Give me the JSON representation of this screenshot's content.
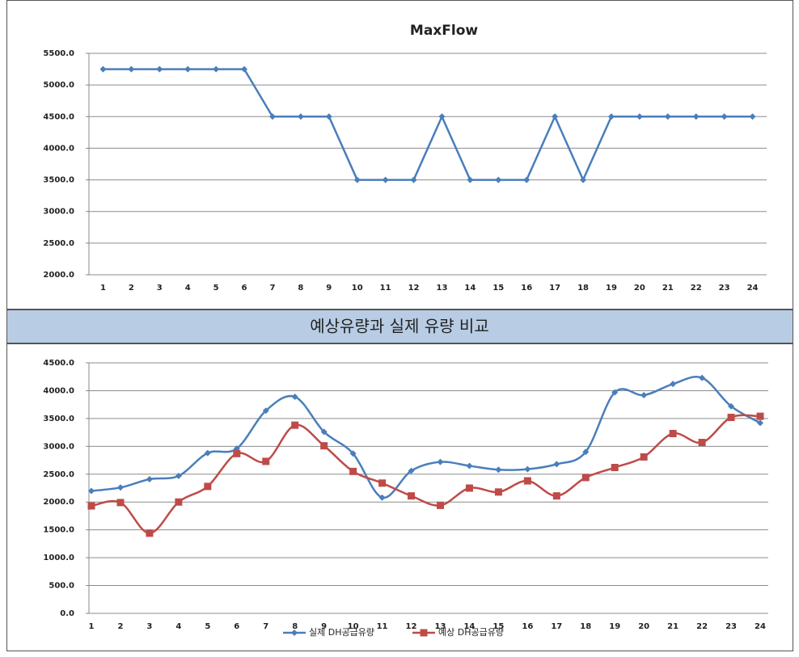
{
  "banner": "예상유량과 실제 유량 비교",
  "chart_data": [
    {
      "type": "line",
      "title": "MaxFlow",
      "categories": [
        "1",
        "2",
        "3",
        "4",
        "5",
        "6",
        "7",
        "8",
        "9",
        "10",
        "11",
        "12",
        "13",
        "14",
        "15",
        "16",
        "17",
        "18",
        "19",
        "20",
        "21",
        "22",
        "23",
        "24"
      ],
      "series": [
        {
          "color": "#4a7ebb",
          "marker": "diamond",
          "values": [
            5250,
            5250,
            5250,
            5250,
            5250,
            5250,
            4500,
            4500,
            4500,
            3500,
            3500,
            3500,
            4500,
            3500,
            3500,
            3500,
            4500,
            3500,
            4500,
            4500,
            4500,
            4500,
            4500,
            4500
          ]
        }
      ],
      "ylim": [
        2000,
        5500
      ],
      "yticks": [
        {
          "value": 2000,
          "label": "2000.0"
        },
        {
          "value": 2500,
          "label": "2500.0"
        },
        {
          "value": 3000,
          "label": "3000.0"
        },
        {
          "value": 3500,
          "label": "3500.0"
        },
        {
          "value": 4000,
          "label": "4000.0"
        },
        {
          "value": 4500,
          "label": "4500.0"
        },
        {
          "value": 5000,
          "label": "5000.0"
        },
        {
          "value": 5500,
          "label": "5500.0"
        }
      ],
      "grid": true
    },
    {
      "type": "line",
      "smooth": true,
      "categories": [
        "1",
        "2",
        "3",
        "4",
        "5",
        "6",
        "7",
        "8",
        "9",
        "10",
        "11",
        "12",
        "13",
        "14",
        "15",
        "16",
        "17",
        "18",
        "19",
        "20",
        "21",
        "22",
        "23",
        "24"
      ],
      "series": [
        {
          "name": "실제 DH공급유량",
          "color": "#4a7ebb",
          "marker": "diamond",
          "values": [
            2200,
            2260,
            2410,
            2470,
            2880,
            2960,
            3640,
            3890,
            3260,
            2870,
            2080,
            2560,
            2720,
            2650,
            2580,
            2590,
            2680,
            2900,
            3970,
            3920,
            4120,
            4230,
            3720,
            3420
          ]
        },
        {
          "name": "예상 DH공급유량",
          "color": "#be4b48",
          "marker": "square",
          "values": [
            1930,
            1990,
            1440,
            2000,
            2280,
            2870,
            2730,
            3380,
            3010,
            2550,
            2340,
            2110,
            1940,
            2250,
            2180,
            2380,
            2110,
            2440,
            2620,
            2810,
            3230,
            3070,
            3520,
            3540
          ]
        }
      ],
      "ylim": [
        0,
        4500
      ],
      "yticks": [
        {
          "value": 0,
          "label": "0.0"
        },
        {
          "value": 500,
          "label": "500.0"
        },
        {
          "value": 1000,
          "label": "1000.0"
        },
        {
          "value": 1500,
          "label": "1500.0"
        },
        {
          "value": 2000,
          "label": "2000.0"
        },
        {
          "value": 2500,
          "label": "2500.0"
        },
        {
          "value": 3000,
          "label": "3000.0"
        },
        {
          "value": 3500,
          "label": "3500.0"
        },
        {
          "value": 4000,
          "label": "4000.0"
        },
        {
          "value": 4500,
          "label": "4500.0"
        }
      ],
      "grid": true,
      "legend": "bottom"
    }
  ]
}
